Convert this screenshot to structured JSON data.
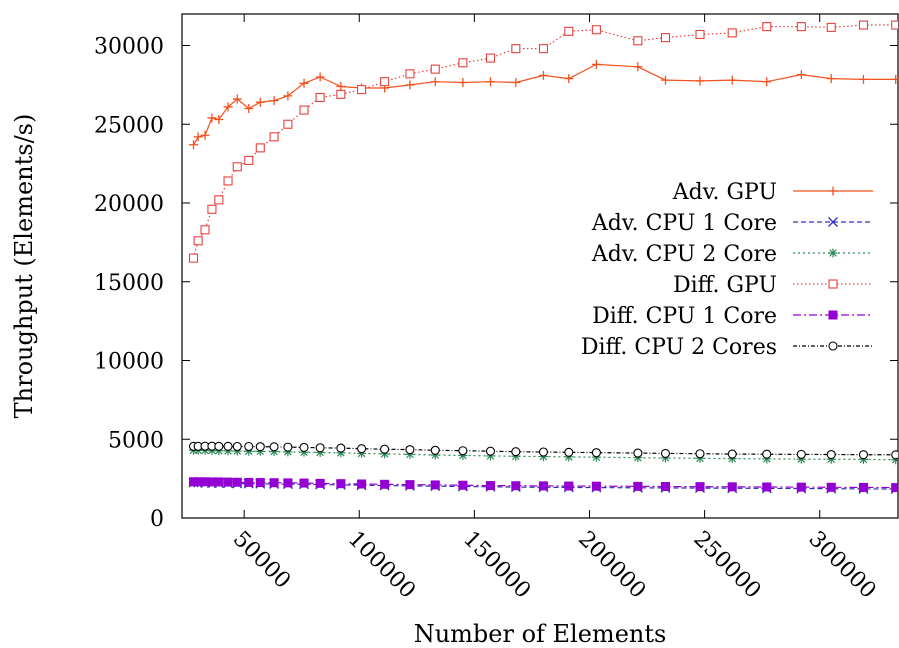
{
  "chart_data": {
    "type": "line",
    "title": "",
    "xlabel": "Number of Elements",
    "ylabel": "Throughput (Elements/s)",
    "xlim": [
      23000,
      334000
    ],
    "ylim": [
      0,
      32000
    ],
    "xticks": [
      50000,
      100000,
      150000,
      200000,
      250000,
      300000
    ],
    "xtick_labels": [
      "50000",
      "100000",
      "150000",
      "200000",
      "250000",
      "300000"
    ],
    "yticks": [
      0,
      5000,
      10000,
      15000,
      20000,
      25000,
      30000
    ],
    "ytick_labels": [
      "0",
      "5000",
      "10000",
      "15000",
      "20000",
      "25000",
      "30000"
    ],
    "grid": false,
    "legend_position": "right-middle",
    "series": [
      {
        "name": "Adv. GPU",
        "color": "#f4511e",
        "marker": "plus",
        "dash": "",
        "x": [
          28000,
          30000,
          33000,
          36000,
          39000,
          43000,
          47000,
          52000,
          57000,
          63000,
          69000,
          76000,
          83000,
          92000,
          101000,
          111000,
          122000,
          133000,
          145000,
          157000,
          168000,
          180000,
          191000,
          203000,
          221000,
          233000,
          248000,
          262000,
          277000,
          292000,
          305000,
          319000,
          333000
        ],
        "y": [
          23700,
          24200,
          24300,
          25400,
          25300,
          26100,
          26600,
          26000,
          26400,
          26500,
          26800,
          27600,
          28000,
          27400,
          27300,
          27300,
          27500,
          27700,
          27650,
          27700,
          27650,
          28100,
          27900,
          28800,
          28650,
          27800,
          27750,
          27800,
          27700,
          28150,
          27900,
          27850,
          27850
        ]
      },
      {
        "name": "Adv. CPU 1 Core",
        "color": "#2e2eb8",
        "marker": "x",
        "dash": "5,3",
        "x": [
          28000,
          30000,
          33000,
          36000,
          39000,
          43000,
          47000,
          52000,
          57000,
          63000,
          69000,
          76000,
          83000,
          92000,
          101000,
          111000,
          122000,
          133000,
          145000,
          157000,
          168000,
          180000,
          191000,
          203000,
          221000,
          233000,
          248000,
          262000,
          277000,
          292000,
          305000,
          319000,
          333000
        ],
        "y": [
          2250,
          2240,
          2230,
          2220,
          2210,
          2200,
          2190,
          2180,
          2170,
          2160,
          2150,
          2140,
          2120,
          2100,
          2080,
          2060,
          2040,
          2020,
          2000,
          1980,
          1960,
          1950,
          1940,
          1930,
          1920,
          1910,
          1900,
          1890,
          1880,
          1870,
          1860,
          1850,
          1840
        ]
      },
      {
        "name": "Adv. CPU 2 Core",
        "color": "#2e8b57",
        "marker": "star",
        "dash": "2,3",
        "x": [
          28000,
          30000,
          33000,
          36000,
          39000,
          43000,
          47000,
          52000,
          57000,
          63000,
          69000,
          76000,
          83000,
          92000,
          101000,
          111000,
          122000,
          133000,
          145000,
          157000,
          168000,
          180000,
          191000,
          203000,
          221000,
          233000,
          248000,
          262000,
          277000,
          292000,
          305000,
          319000,
          333000
        ],
        "y": [
          4300,
          4300,
          4290,
          4280,
          4270,
          4260,
          4250,
          4240,
          4230,
          4220,
          4200,
          4180,
          4160,
          4140,
          4100,
          4070,
          4040,
          4000,
          3970,
          3940,
          3920,
          3900,
          3880,
          3860,
          3830,
          3810,
          3790,
          3770,
          3750,
          3740,
          3730,
          3720,
          3700
        ]
      },
      {
        "name": "Diff. GPU",
        "color": "#e8413c",
        "marker": "square-open",
        "dash": "1.5,2.5",
        "x": [
          28000,
          30000,
          33000,
          36000,
          39000,
          43000,
          47000,
          52000,
          57000,
          63000,
          69000,
          76000,
          83000,
          92000,
          101000,
          111000,
          122000,
          133000,
          145000,
          157000,
          168000,
          180000,
          191000,
          203000,
          221000,
          233000,
          248000,
          262000,
          277000,
          292000,
          305000,
          319000,
          333000
        ],
        "y": [
          16500,
          17600,
          18300,
          19600,
          20200,
          21400,
          22300,
          22700,
          23500,
          24200,
          25000,
          25900,
          26700,
          26900,
          27200,
          27700,
          28200,
          28500,
          28900,
          29200,
          29800,
          29800,
          30900,
          31000,
          30300,
          30500,
          30700,
          30800,
          31200,
          31200,
          31150,
          31300,
          31300
        ]
      },
      {
        "name": "Diff. CPU 1 Core",
        "color": "#9400d3",
        "marker": "square-filled",
        "dash": "8,3,2,3",
        "x": [
          28000,
          30000,
          33000,
          36000,
          39000,
          43000,
          47000,
          52000,
          57000,
          63000,
          69000,
          76000,
          83000,
          92000,
          101000,
          111000,
          122000,
          133000,
          145000,
          157000,
          168000,
          180000,
          191000,
          203000,
          221000,
          233000,
          248000,
          262000,
          277000,
          292000,
          305000,
          319000,
          333000
        ],
        "y": [
          2300,
          2300,
          2300,
          2290,
          2290,
          2280,
          2270,
          2260,
          2250,
          2240,
          2230,
          2220,
          2200,
          2180,
          2160,
          2140,
          2120,
          2100,
          2080,
          2060,
          2050,
          2040,
          2030,
          2020,
          2010,
          2000,
          1990,
          1980,
          1970,
          1960,
          1950,
          1940,
          1930
        ]
      },
      {
        "name": "Diff. CPU 2 Cores",
        "color": "#000000",
        "marker": "circle-open",
        "dash": "4,2,1,2",
        "x": [
          28000,
          30000,
          33000,
          36000,
          39000,
          43000,
          47000,
          52000,
          57000,
          63000,
          69000,
          76000,
          83000,
          92000,
          101000,
          111000,
          122000,
          133000,
          145000,
          157000,
          168000,
          180000,
          191000,
          203000,
          221000,
          233000,
          248000,
          262000,
          277000,
          292000,
          305000,
          319000,
          333000
        ],
        "y": [
          4550,
          4550,
          4560,
          4560,
          4550,
          4550,
          4540,
          4540,
          4530,
          4520,
          4500,
          4480,
          4460,
          4440,
          4400,
          4370,
          4340,
          4300,
          4270,
          4240,
          4210,
          4190,
          4170,
          4150,
          4120,
          4100,
          4080,
          4060,
          4050,
          4040,
          4030,
          4020,
          4010
        ]
      }
    ]
  }
}
